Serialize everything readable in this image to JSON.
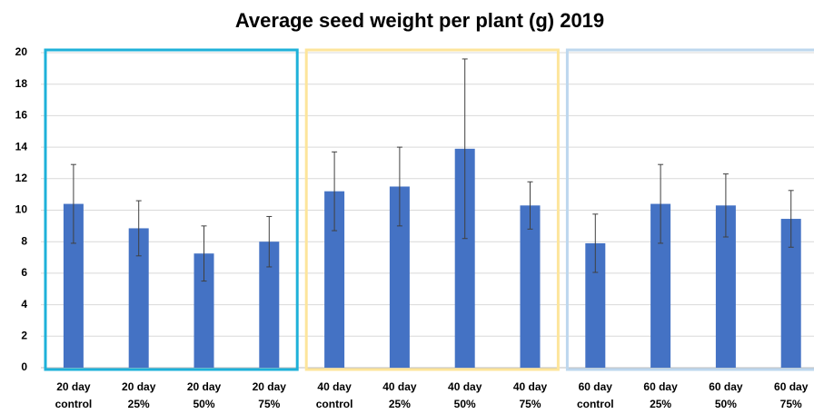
{
  "chart_data": {
    "type": "bar",
    "title": "Average seed weight per plant (g) 2019",
    "categories": [
      [
        "20 day",
        "control"
      ],
      [
        "20 day",
        "25%"
      ],
      [
        "20 day",
        "50%"
      ],
      [
        "20 day",
        "75%"
      ],
      [
        "40 day",
        "control"
      ],
      [
        "40 day",
        "25%"
      ],
      [
        "40 day",
        "50%"
      ],
      [
        "40 day",
        "75%"
      ],
      [
        "60 day",
        "control"
      ],
      [
        "60 day",
        "25%"
      ],
      [
        "60 day",
        "50%"
      ],
      [
        "60 day",
        "75%"
      ]
    ],
    "values": [
      10.4,
      8.85,
      7.25,
      8.0,
      11.2,
      11.5,
      13.9,
      10.3,
      7.9,
      10.4,
      10.3,
      9.45
    ],
    "errors": [
      2.5,
      1.75,
      1.75,
      1.6,
      2.5,
      2.5,
      5.7,
      1.5,
      1.85,
      2.5,
      2.0,
      1.8
    ],
    "color": "#4472c4",
    "group_box_colors": [
      "#1eb1d9",
      "#fde59b",
      "#bdd7ee"
    ],
    "ylim": [
      0,
      20
    ],
    "yticks": [
      0,
      2,
      4,
      6,
      8,
      10,
      12,
      14,
      16,
      18,
      20
    ],
    "grid": true
  }
}
